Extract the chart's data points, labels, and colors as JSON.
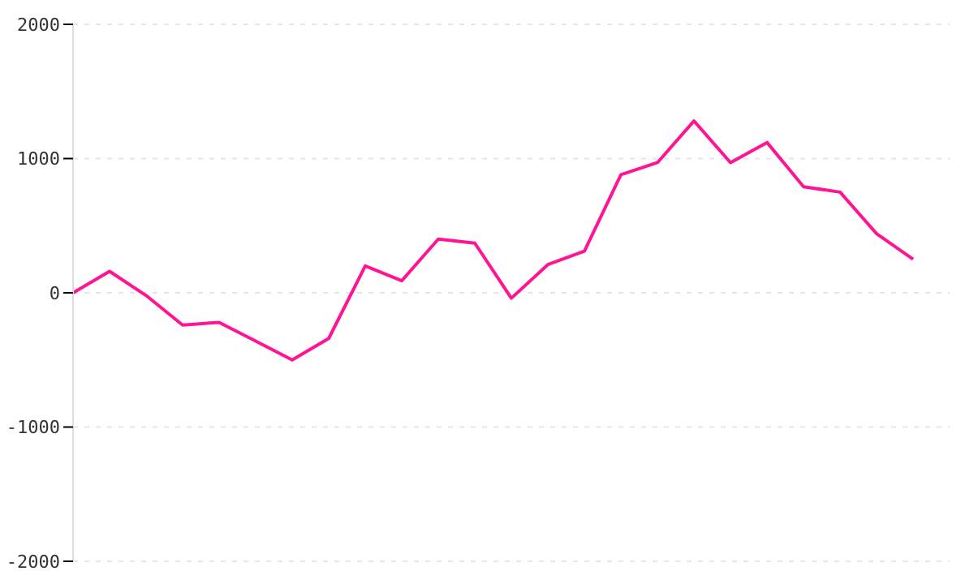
{
  "chart_data": {
    "type": "line",
    "categories": [
      null,
      null,
      null,
      null,
      null,
      null,
      null,
      null,
      null,
      null,
      null,
      null,
      null,
      null,
      null,
      null,
      null,
      null,
      null,
      null,
      null,
      null,
      null,
      null
    ],
    "series": [
      {
        "color": "#ff1493",
        "values": [
          0,
          160,
          -20,
          -240,
          -220,
          -360,
          -500,
          -340,
          200,
          90,
          400,
          370,
          -40,
          210,
          310,
          880,
          970,
          1280,
          970,
          1120,
          790,
          750,
          440,
          250
        ]
      }
    ],
    "ylim": [
      -2000,
      2000
    ],
    "yticks": [
      -2000,
      -1000,
      0,
      1000,
      2000
    ],
    "grid": "y",
    "marker": "none",
    "line_style": "solid",
    "legend": false
  }
}
